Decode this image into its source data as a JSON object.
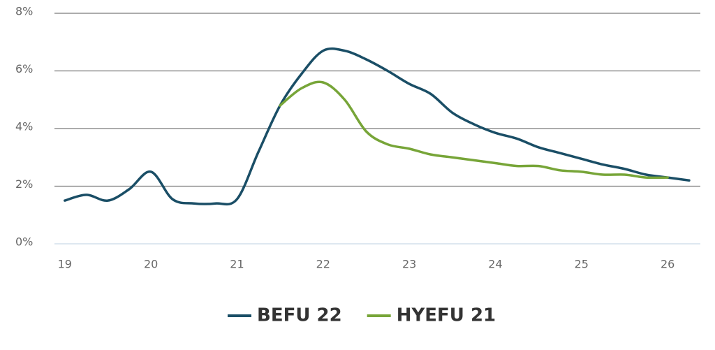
{
  "chart_data": {
    "type": "line",
    "x": [
      19,
      19.25,
      19.5,
      19.75,
      20,
      20.25,
      20.5,
      20.75,
      21,
      21.25,
      21.5,
      21.75,
      22,
      22.25,
      22.5,
      22.75,
      23,
      23.25,
      23.5,
      23.75,
      24,
      24.25,
      24.5,
      24.75,
      25,
      25.25,
      25.5,
      25.75,
      26,
      26.25
    ],
    "series": [
      {
        "name": "BEFU 22",
        "color": "#1a4e66",
        "values": [
          1.5,
          1.7,
          1.5,
          1.9,
          2.5,
          1.55,
          1.4,
          1.4,
          1.55,
          3.2,
          4.8,
          5.9,
          6.7,
          6.7,
          6.4,
          6.0,
          5.55,
          5.2,
          4.55,
          4.15,
          3.85,
          3.65,
          3.35,
          3.15,
          2.95,
          2.75,
          2.6,
          2.4,
          2.3,
          2.2
        ]
      },
      {
        "name": "HYEFU 21",
        "color": "#77a538",
        "values": [
          null,
          null,
          null,
          null,
          null,
          null,
          null,
          null,
          null,
          null,
          4.8,
          5.4,
          5.6,
          5.0,
          3.9,
          3.45,
          3.3,
          3.1,
          3.0,
          2.9,
          2.8,
          2.7,
          2.7,
          2.55,
          2.5,
          2.4,
          2.4,
          2.3,
          2.3,
          null
        ]
      }
    ],
    "xlim": [
      18.88,
      26.38
    ],
    "xticks": [
      19,
      20,
      21,
      22,
      23,
      24,
      25,
      26
    ],
    "ylim": [
      0,
      8
    ],
    "yticks": [
      {
        "value": 0,
        "label": "0%"
      },
      {
        "value": 2,
        "label": "2%"
      },
      {
        "value": 4,
        "label": "4%"
      },
      {
        "value": 6,
        "label": "6%"
      },
      {
        "value": 8,
        "label": "8%"
      }
    ],
    "grid": true,
    "legend": "bottom"
  }
}
